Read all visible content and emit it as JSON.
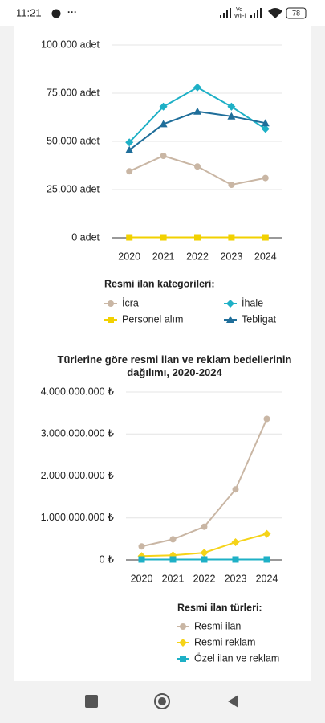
{
  "status_bar": {
    "time": "11:21",
    "network_top": "Vo",
    "network_bottom": "WiFi",
    "battery": "78"
  },
  "chart_data": [
    {
      "type": "line",
      "categories": [
        "2020",
        "2021",
        "2022",
        "2023",
        "2024"
      ],
      "ylim": [
        0,
        100000
      ],
      "yticks": [
        {
          "value": 0,
          "label": "0 adet"
        },
        {
          "value": 25000,
          "label": "25.000 adet"
        },
        {
          "value": 50000,
          "label": "50.000 adet"
        },
        {
          "value": 75000,
          "label": "75.000 adet"
        },
        {
          "value": 100000,
          "label": "100.000 adet"
        }
      ],
      "grid": true,
      "legend_title": "Resmi ilan kategorileri:",
      "series": [
        {
          "name": "İcra",
          "color": "#c9b6a4",
          "marker": "circle",
          "values": [
            34500,
            42500,
            37000,
            27500,
            31000
          ]
        },
        {
          "name": "İhale",
          "color": "#1eb0c6",
          "marker": "diamond",
          "values": [
            49500,
            68000,
            78000,
            68000,
            56500
          ]
        },
        {
          "name": "Personel alım",
          "color": "#f2d100",
          "marker": "square",
          "values": [
            200,
            200,
            200,
            200,
            200
          ]
        },
        {
          "name": "Tebligat",
          "color": "#1f6e9a",
          "marker": "triangle",
          "values": [
            45500,
            59000,
            65500,
            63000,
            59500
          ]
        }
      ]
    },
    {
      "type": "line",
      "title": "Türlerine göre resmi ilan ve reklam bedellerinin dağılımı, 2020-2024",
      "categories": [
        "2020",
        "2021",
        "2022",
        "2023",
        "2024"
      ],
      "ylim": [
        0,
        4000000000
      ],
      "yticks": [
        {
          "value": 0,
          "label": "0 ₺"
        },
        {
          "value": 1000000000,
          "label": "1.000.000.000 ₺"
        },
        {
          "value": 2000000000,
          "label": "2.000.000.000 ₺"
        },
        {
          "value": 3000000000,
          "label": "3.000.000.000 ₺"
        },
        {
          "value": 4000000000,
          "label": "4.000.000.000 ₺"
        }
      ],
      "grid": true,
      "legend_title": "Resmi ilan türleri:",
      "series": [
        {
          "name": "Resmi ilan",
          "color": "#c9b6a4",
          "marker": "circle",
          "values": [
            320000000,
            490000000,
            790000000,
            1680000000,
            3360000000
          ]
        },
        {
          "name": "Resmi reklam",
          "color": "#f5d318",
          "marker": "diamond",
          "values": [
            90000000,
            110000000,
            170000000,
            420000000,
            620000000
          ]
        },
        {
          "name": "Özel ilan ve reklam",
          "color": "#1eb0c6",
          "marker": "square",
          "values": [
            10000000,
            10000000,
            10000000,
            10000000,
            10000000
          ]
        }
      ]
    }
  ]
}
